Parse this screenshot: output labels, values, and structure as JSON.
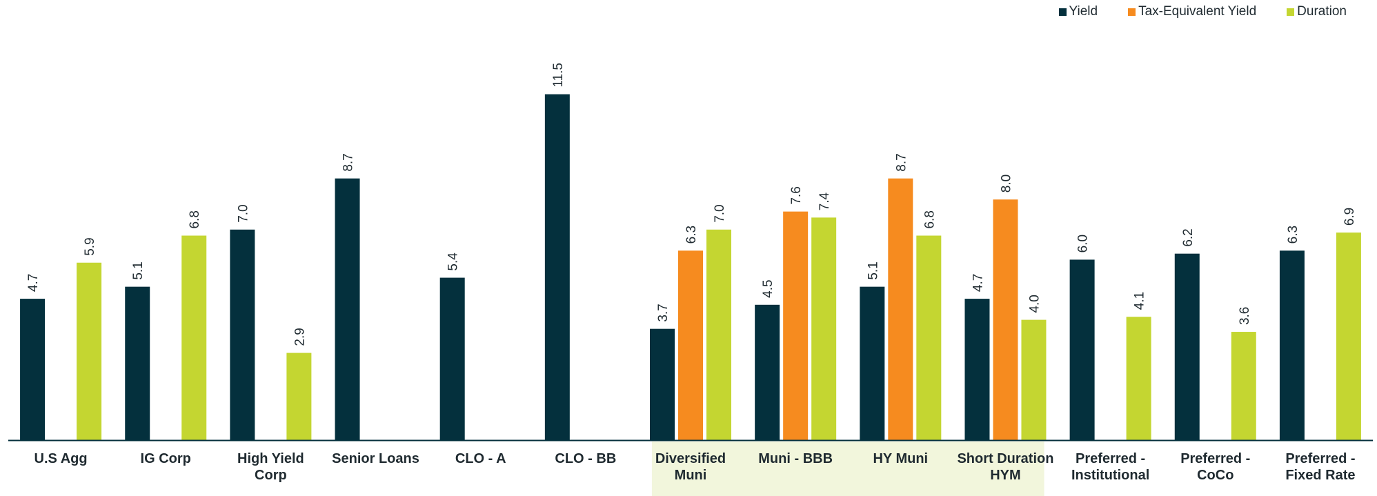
{
  "chart_data": {
    "type": "bar",
    "categories": [
      [
        "U.S Agg"
      ],
      [
        "IG Corp"
      ],
      [
        "High Yield",
        "Corp"
      ],
      [
        "Senior Loans"
      ],
      [
        "CLO - A"
      ],
      [
        "CLO - BB"
      ],
      [
        "Diversified",
        "Muni"
      ],
      [
        "Muni - BBB"
      ],
      [
        "HY Muni"
      ],
      [
        "Short Duration",
        "HYM"
      ],
      [
        "Preferred -",
        "Institutional"
      ],
      [
        "Preferred -",
        "CoCo"
      ],
      [
        "Preferred -",
        "Fixed Rate"
      ]
    ],
    "series": [
      {
        "name": "Yield",
        "color": "#04303d",
        "values": [
          4.7,
          5.1,
          7.0,
          8.7,
          5.4,
          11.5,
          3.7,
          4.5,
          5.1,
          4.7,
          6.0,
          6.2,
          6.3
        ]
      },
      {
        "name": "Tax-Equivalent Yield",
        "color": "#f68b1f",
        "values": [
          null,
          null,
          null,
          null,
          null,
          null,
          6.3,
          7.6,
          8.7,
          8.0,
          null,
          null,
          null
        ]
      },
      {
        "name": "Duration",
        "color": "#c4d631",
        "values": [
          5.9,
          6.8,
          2.9,
          null,
          null,
          null,
          7.0,
          7.4,
          6.8,
          4.0,
          4.1,
          3.6,
          6.9
        ]
      }
    ],
    "highlight_categories": [
      6,
      7,
      8,
      9
    ],
    "highlight_color": "#f2f6dc",
    "ylim": [
      0,
      12
    ],
    "grid": false,
    "legend": "top-right"
  }
}
